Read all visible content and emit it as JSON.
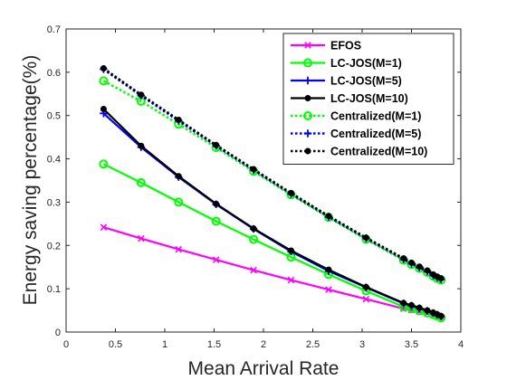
{
  "chart_data": {
    "type": "line",
    "xlabel": "Mean Arrival Rate",
    "ylabel": "Energy saving percentage(%)",
    "xlim": [
      0,
      4
    ],
    "ylim": [
      0,
      0.7
    ],
    "xticks": [
      0,
      0.5,
      1,
      1.5,
      2,
      2.5,
      3,
      3.5,
      4
    ],
    "xtick_labels": [
      "0",
      "0.5",
      "1",
      "1.5",
      "2",
      "2.5",
      "3",
      "3.5",
      "4"
    ],
    "yticks": [
      0,
      0.1,
      0.2,
      0.3,
      0.4,
      0.5,
      0.6,
      0.7
    ],
    "ytick_labels": [
      "0",
      "0.1",
      "0.2",
      "0.3",
      "0.4",
      "0.5",
      "0.6",
      "0.7"
    ],
    "grid": false,
    "legend_position": "top-right",
    "x": [
      0.38,
      0.76,
      1.14,
      1.52,
      1.9,
      2.28,
      2.66,
      3.04,
      3.42,
      3.5,
      3.58,
      3.66,
      3.72,
      3.76,
      3.8
    ],
    "series": [
      {
        "name": "EFOS",
        "color": "#ff00ff",
        "style": "solid",
        "marker": "x",
        "values": [
          0.242,
          0.216,
          0.191,
          0.167,
          0.143,
          0.12,
          0.098,
          0.076,
          0.054,
          0.051,
          0.047,
          0.043,
          0.039,
          0.037,
          0.034
        ]
      },
      {
        "name": "LC-JOS(M=1)",
        "color": "#00ff00",
        "style": "solid",
        "marker": "o",
        "values": [
          0.388,
          0.345,
          0.3,
          0.256,
          0.214,
          0.173,
          0.133,
          0.095,
          0.058,
          0.054,
          0.049,
          0.044,
          0.04,
          0.037,
          0.033
        ]
      },
      {
        "name": "LC-JOS(M=5)",
        "color": "#0000ff",
        "style": "solid",
        "marker": "+",
        "values": [
          0.505,
          0.427,
          0.358,
          0.295,
          0.238,
          0.186,
          0.141,
          0.103,
          0.066,
          0.061,
          0.055,
          0.049,
          0.044,
          0.04,
          0.036
        ]
      },
      {
        "name": "LC-JOS(M=10)",
        "color": "#000000",
        "style": "solid",
        "marker": "filled-circle",
        "values": [
          0.515,
          0.43,
          0.36,
          0.296,
          0.239,
          0.188,
          0.144,
          0.104,
          0.067,
          0.062,
          0.056,
          0.05,
          0.045,
          0.041,
          0.037
        ]
      },
      {
        "name": "Centralized(M=1)",
        "color": "#00ff00",
        "style": "dotted",
        "marker": "o",
        "values": [
          0.58,
          0.533,
          0.48,
          0.426,
          0.371,
          0.317,
          0.265,
          0.214,
          0.166,
          0.156,
          0.147,
          0.138,
          0.129,
          0.124,
          0.12
        ]
      },
      {
        "name": "Centralized(M=5)",
        "color": "#0000ff",
        "style": "dotted",
        "marker": "+",
        "values": [
          0.607,
          0.546,
          0.488,
          0.43,
          0.374,
          0.319,
          0.266,
          0.216,
          0.168,
          0.158,
          0.149,
          0.14,
          0.131,
          0.126,
          0.122
        ]
      },
      {
        "name": "Centralized(M=10)",
        "color": "#000000",
        "style": "dotted",
        "marker": "filled-circle",
        "values": [
          0.609,
          0.548,
          0.49,
          0.432,
          0.376,
          0.321,
          0.268,
          0.218,
          0.17,
          0.16,
          0.151,
          0.142,
          0.133,
          0.128,
          0.124
        ]
      }
    ]
  }
}
